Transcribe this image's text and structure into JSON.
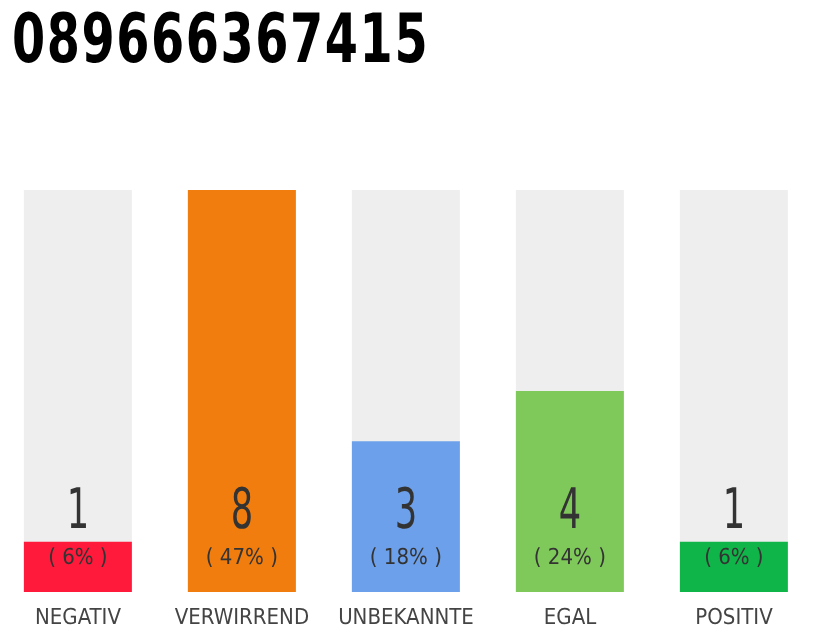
{
  "chart_data": {
    "type": "bar",
    "title": "089666367415",
    "categories": [
      "NEGATIV",
      "VERWIRREND",
      "UNBEKANNTE",
      "EGAL",
      "POSITIV"
    ],
    "values": [
      1,
      8,
      3,
      4,
      1
    ],
    "colors": [
      "#ff1a3c",
      "#f07d0e",
      "#6ca0ea",
      "#7fc95a",
      "#10b54a"
    ],
    "data_labels": true,
    "annotations": [
      "( 6% )",
      "( 47% )",
      "( 18% )",
      "( 24% )",
      "( 6% )"
    ]
  }
}
